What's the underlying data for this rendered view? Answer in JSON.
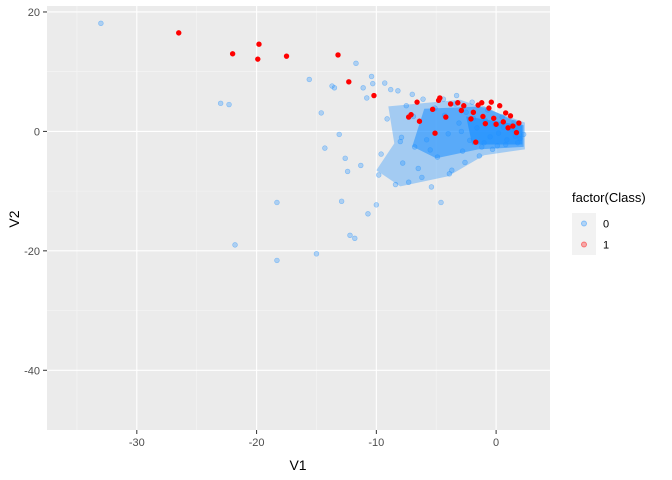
{
  "chart_data": {
    "type": "scatter",
    "xlabel": "V1",
    "ylabel": "V2",
    "xlim": [
      -37.5,
      4.5
    ],
    "ylim": [
      -50,
      21
    ],
    "x_ticks": [
      -30,
      -20,
      -10,
      0
    ],
    "x_tick_labels": [
      "-30",
      "-20",
      "-10",
      "0"
    ],
    "y_ticks": [
      -40,
      -20,
      0,
      20
    ],
    "y_tick_labels": [
      "-40",
      "-20",
      "0",
      "20"
    ],
    "grid": true,
    "panel_background": "#ebebeb",
    "legend": {
      "title": "factor(Class)",
      "position": "right",
      "entries": [
        {
          "label": "0",
          "color": "#1e90ff"
        },
        {
          "label": "1",
          "color": "#ff0000"
        }
      ]
    },
    "series": [
      {
        "name": "0",
        "color": "#1e90ff",
        "opacity": 0.3,
        "points": [
          [
            -33.0,
            18.1
          ],
          [
            -23.0,
            4.7
          ],
          [
            -22.3,
            4.5
          ],
          [
            -21.8,
            -19.0
          ],
          [
            -18.3,
            -11.9
          ],
          [
            -18.3,
            -21.6
          ],
          [
            -15.6,
            8.7
          ],
          [
            -15.0,
            -20.5
          ],
          [
            -14.6,
            3.1
          ],
          [
            -14.3,
            -2.8
          ],
          [
            -13.7,
            7.6
          ],
          [
            -13.5,
            7.3
          ],
          [
            -13.1,
            -0.5
          ],
          [
            -12.9,
            -11.7
          ],
          [
            -12.6,
            -4.5
          ],
          [
            -12.4,
            -6.7
          ],
          [
            -12.2,
            -17.4
          ],
          [
            -11.8,
            -17.9
          ],
          [
            -11.7,
            11.4
          ],
          [
            -11.3,
            -5.7
          ],
          [
            -11.1,
            7.3
          ],
          [
            -10.8,
            5.6
          ],
          [
            -10.7,
            -13.8
          ],
          [
            -10.4,
            9.2
          ],
          [
            -10.3,
            8.0
          ],
          [
            -10.0,
            -12.3
          ],
          [
            -9.8,
            -7.3
          ],
          [
            -9.6,
            -3.8
          ],
          [
            -9.3,
            8.1
          ],
          [
            -9.1,
            2.1
          ],
          [
            -8.8,
            7.0
          ],
          [
            -8.4,
            -8.9
          ],
          [
            -8.2,
            6.8
          ],
          [
            -8.0,
            -1.7
          ],
          [
            -7.8,
            -5.3
          ],
          [
            -7.5,
            4.3
          ],
          [
            -7.3,
            -8.5
          ],
          [
            -7.0,
            6.2
          ],
          [
            -6.8,
            -2.6
          ],
          [
            -6.5,
            -6.2
          ],
          [
            -6.1,
            5.4
          ],
          [
            -5.8,
            -1.4
          ],
          [
            -5.4,
            -9.3
          ],
          [
            -5.1,
            3.9
          ],
          [
            -4.9,
            -4.3
          ],
          [
            -4.6,
            -11.9
          ],
          [
            -4.3,
            2.7
          ],
          [
            -4.0,
            -0.4
          ],
          [
            -3.7,
            -6.5
          ],
          [
            -3.4,
            4.6
          ],
          [
            -3.1,
            1.4
          ],
          [
            -2.8,
            -3.3
          ],
          [
            -2.5,
            3.2
          ],
          [
            -2.2,
            -1.5
          ],
          [
            -1.9,
            2.2
          ],
          [
            -1.6,
            0.6
          ],
          [
            -1.2,
            -2.6
          ],
          [
            -0.9,
            1.8
          ],
          [
            -0.5,
            -0.9
          ],
          [
            -0.1,
            1.1
          ],
          [
            0.2,
            -0.3
          ],
          [
            0.6,
            0.7
          ],
          [
            0.9,
            -1.4
          ],
          [
            1.3,
            0.3
          ],
          [
            1.6,
            -0.8
          ],
          [
            2.0,
            -1.2
          ],
          [
            2.3,
            -0.5
          ],
          [
            -6.2,
            -7.7
          ],
          [
            -5.5,
            -3.1
          ],
          [
            -3.9,
            -7.1
          ],
          [
            -2.6,
            -5.2
          ],
          [
            -1.4,
            -4.1
          ],
          [
            -0.3,
            -3.0
          ],
          [
            0.8,
            -2.2
          ],
          [
            1.8,
            -1.9
          ],
          [
            -4.4,
            5.4
          ],
          [
            -3.3,
            6.0
          ],
          [
            -2.0,
            4.9
          ],
          [
            -0.7,
            3.6
          ],
          [
            0.5,
            2.4
          ],
          [
            1.5,
            1.5
          ],
          [
            -7.9,
            -1.0
          ],
          [
            -6.9,
            2.5
          ],
          [
            -2.9,
            0.0
          ],
          [
            -1.0,
            -1.9
          ],
          [
            0.1,
            -2.4
          ]
        ]
      },
      {
        "name": "1",
        "color": "#ff0000",
        "opacity": 1,
        "points": [
          [
            -26.5,
            16.5
          ],
          [
            -22.0,
            13.0
          ],
          [
            -19.8,
            14.6
          ],
          [
            -19.9,
            12.1
          ],
          [
            -17.5,
            12.6
          ],
          [
            -13.2,
            12.8
          ],
          [
            -12.3,
            8.3
          ],
          [
            -10.2,
            6.0
          ],
          [
            -7.3,
            2.4
          ],
          [
            -7.1,
            2.8
          ],
          [
            -6.6,
            4.9
          ],
          [
            -6.4,
            1.7
          ],
          [
            -5.3,
            3.7
          ],
          [
            -5.1,
            -0.3
          ],
          [
            -4.8,
            5.2
          ],
          [
            -4.7,
            5.6
          ],
          [
            -4.2,
            2.4
          ],
          [
            -3.8,
            4.6
          ],
          [
            -3.2,
            4.8
          ],
          [
            -2.9,
            3.5
          ],
          [
            -2.7,
            4.3
          ],
          [
            -2.1,
            2.1
          ],
          [
            -1.9,
            3.2
          ],
          [
            -1.7,
            -1.8
          ],
          [
            -1.5,
            4.4
          ],
          [
            -1.2,
            4.8
          ],
          [
            -1.1,
            2.5
          ],
          [
            -0.9,
            1.3
          ],
          [
            -0.6,
            3.9
          ],
          [
            -0.4,
            4.9
          ],
          [
            -0.2,
            2.2
          ],
          [
            0.0,
            1.2
          ],
          [
            0.3,
            4.3
          ],
          [
            0.6,
            1.6
          ],
          [
            0.8,
            3.1
          ],
          [
            1.0,
            0.6
          ],
          [
            1.2,
            2.6
          ],
          [
            1.4,
            0.9
          ],
          [
            1.7,
            -0.2
          ],
          [
            1.9,
            1.4
          ]
        ]
      }
    ]
  }
}
